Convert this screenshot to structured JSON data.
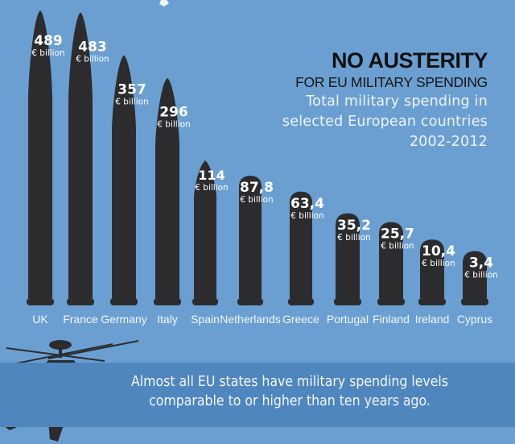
{
  "title": {
    "headline": "NO AUSTERITY",
    "subheadline": "FOR EU MILITARY SPENDING",
    "description_line1": "Total military spending in",
    "description_line2": "selected European countries",
    "description_line3": "2002-2012"
  },
  "caption": {
    "line1": "Almost all EU states have military spending levels",
    "line2": "comparable to or higher than ten years ago."
  },
  "colors": {
    "background": "#6b9fd1",
    "band": "#4f86bd",
    "bullet": "#2c2c2e",
    "label": "#ffffff"
  },
  "chart_data": {
    "type": "bar",
    "title": "Total military spending in selected European countries 2002-2012",
    "xlabel": "",
    "ylabel": "€ billion",
    "unit_label": "€ billion",
    "categories": [
      "UK",
      "France",
      "Germany",
      "Italy",
      "Spain",
      "Netherlands",
      "Greece",
      "Portugal",
      "Finland",
      "Ireland",
      "Cyprus"
    ],
    "values": [
      489,
      483,
      357,
      296,
      114,
      87.8,
      63.4,
      35.2,
      25.7,
      10.4,
      3.4
    ],
    "value_labels": [
      "489",
      "483",
      "357",
      "296",
      "114",
      "87,8",
      "63,4",
      "35,2",
      "25,7",
      "10,4",
      "3,4"
    ],
    "grid": false,
    "legend": "none"
  }
}
